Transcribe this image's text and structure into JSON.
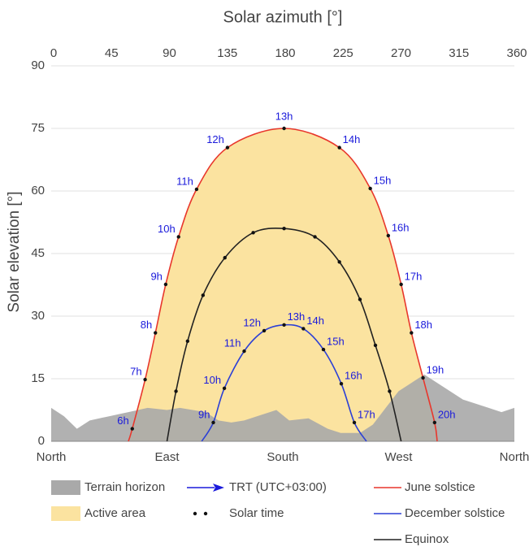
{
  "chart_data": {
    "type": "line",
    "title": "Solar azimuth [°]",
    "y_label": "Solar elevation [°]",
    "xlim": [
      0,
      360
    ],
    "xticks": [
      0,
      45,
      90,
      135,
      180,
      225,
      270,
      315,
      360
    ],
    "xticks_bottom": [
      {
        "value": 0,
        "label": "North"
      },
      {
        "value": 90,
        "label": "East"
      },
      {
        "value": 180,
        "label": "South"
      },
      {
        "value": 270,
        "label": "West"
      },
      {
        "value": 360,
        "label": "North"
      }
    ],
    "ylim": [
      0,
      90
    ],
    "yticks": [
      0,
      15,
      30,
      45,
      60,
      75,
      90
    ],
    "grid": true,
    "terrain": {
      "name": "Terrain horizon",
      "color": "#a9a9a9",
      "x": [
        0,
        10,
        20,
        30,
        45,
        60,
        75,
        90,
        100,
        120,
        130,
        140,
        150,
        165,
        175,
        185,
        200,
        215,
        225,
        240,
        250,
        260,
        270,
        280,
        290,
        300,
        310,
        320,
        330,
        340,
        350,
        360
      ],
      "values": [
        8,
        6,
        3,
        5,
        6,
        7,
        8,
        7.5,
        8,
        7,
        5,
        4.5,
        5,
        6.5,
        7.5,
        5,
        5.5,
        3,
        2,
        2,
        4,
        8,
        12,
        14,
        16,
        14,
        12,
        10,
        9,
        8,
        7,
        8
      ]
    },
    "active_area": {
      "name": "Active area",
      "color": "#fbe3a0"
    },
    "trt": {
      "name": "TRT (UTC+03:00)",
      "color": "#1a1adb"
    },
    "solar_time": {
      "name": "Solar time"
    },
    "series": [
      {
        "name": "June solstice",
        "color": "#e8372c",
        "x": [
          60,
          63,
          73,
          81,
          89,
          99,
          113,
          137,
          181,
          224,
          248,
          262,
          272,
          280,
          289,
          298,
          300
        ],
        "values": [
          0,
          3,
          14.8,
          26,
          37.6,
          49,
          60.4,
          70.4,
          75,
          70.4,
          60.6,
          49.3,
          37.6,
          26,
          15.2,
          4.5,
          0
        ],
        "labels": [
          null,
          "6h",
          "7h",
          "8h",
          "9h",
          "10h",
          "11h",
          "12h",
          "13h",
          "14h",
          "15h",
          "16h",
          "17h",
          "18h",
          "19h",
          "20h",
          null
        ]
      },
      {
        "name": "December solstice",
        "color": "#2b3fd6",
        "x": [
          117,
          126,
          134.6,
          150,
          165.5,
          181,
          196,
          211.6,
          225.5,
          235.6,
          245
        ],
        "values": [
          0,
          4.5,
          12.7,
          21.6,
          26.5,
          27.9,
          27,
          22,
          13.8,
          4.5,
          0
        ],
        "labels": [
          null,
          "9h",
          "10h",
          "11h",
          "12h",
          "13h",
          "14h",
          "15h",
          "16h",
          "17h",
          null
        ]
      },
      {
        "name": "Equinox",
        "color": "#222222",
        "x": [
          90,
          97,
          106,
          118,
          135,
          157,
          181,
          205,
          224,
          240,
          252,
          263,
          272
        ],
        "values": [
          0,
          12,
          24,
          35,
          44,
          50,
          51,
          49,
          43,
          34,
          23,
          12,
          0
        ],
        "labels": [
          null,
          null,
          null,
          null,
          null,
          null,
          null,
          null,
          null,
          null,
          null,
          null,
          null
        ]
      }
    ]
  }
}
